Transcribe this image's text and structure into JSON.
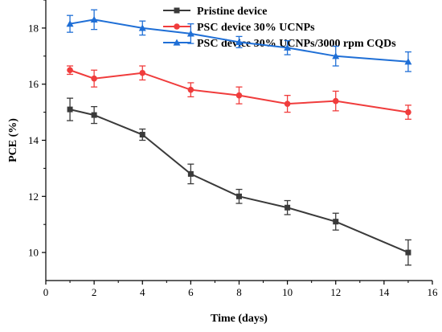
{
  "chart_data": {
    "type": "line",
    "xlabel": "Time (days)",
    "ylabel": "PCE (%)",
    "xlim": [
      0,
      16
    ],
    "ylim": [
      9,
      19
    ],
    "x_ticks": [
      0,
      2,
      4,
      6,
      8,
      10,
      12,
      14,
      16
    ],
    "y_ticks": [
      10,
      12,
      14,
      16,
      18
    ],
    "grid": false,
    "legend_position": "top",
    "x": [
      1,
      2,
      4,
      6,
      8,
      10,
      12,
      15
    ],
    "series": [
      {
        "name": "Pristine device",
        "color": "#3a3a3a",
        "marker": "square",
        "values": [
          15.1,
          14.9,
          14.2,
          12.8,
          12.0,
          11.6,
          11.1,
          10.0
        ],
        "errors": [
          0.4,
          0.3,
          0.2,
          0.35,
          0.25,
          0.25,
          0.3,
          0.45
        ]
      },
      {
        "name": "PSC device 30% UCNPs",
        "color": "#f03c3c",
        "marker": "circle",
        "values": [
          16.5,
          16.2,
          16.4,
          15.8,
          15.6,
          15.3,
          15.4,
          15.0
        ],
        "errors": [
          0.15,
          0.3,
          0.25,
          0.25,
          0.3,
          0.3,
          0.35,
          0.25
        ]
      },
      {
        "name": "PSC device 30% UCNPs/3000 rpm CQDs",
        "color": "#1f6fd6",
        "marker": "triangle",
        "values": [
          18.15,
          18.3,
          18.0,
          17.8,
          17.5,
          17.3,
          17.0,
          16.8
        ],
        "errors": [
          0.3,
          0.35,
          0.25,
          0.35,
          0.2,
          0.25,
          0.35,
          0.35
        ]
      }
    ]
  }
}
